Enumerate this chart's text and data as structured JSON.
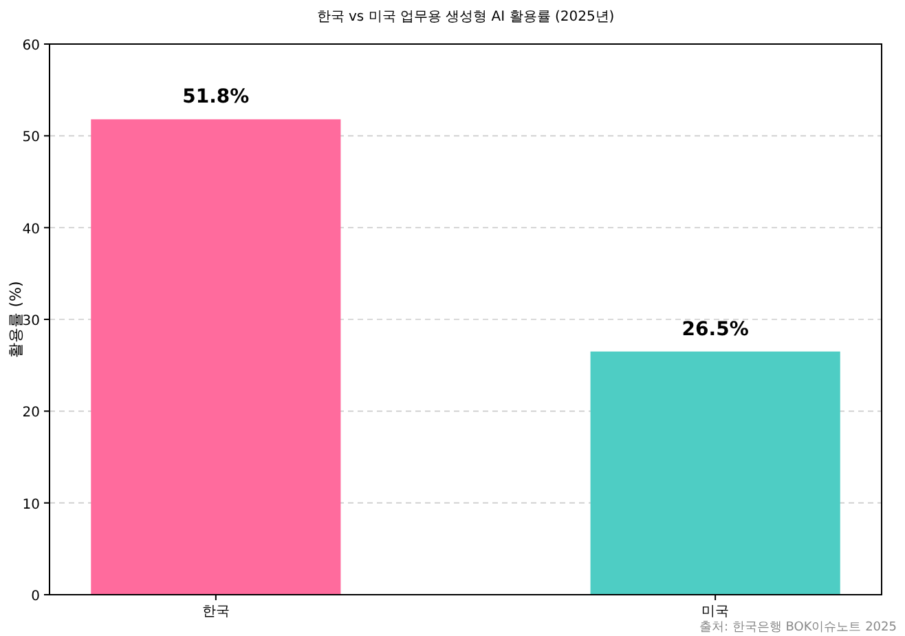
{
  "chart_data": {
    "type": "bar",
    "title": "한국 vs 미국 업무용 생성형 AI 활용률 (2025년)",
    "ylabel": "활용률 (%)",
    "categories": [
      "한국",
      "미국"
    ],
    "values": [
      51.8,
      26.5
    ],
    "colors": [
      "#ff6b9d",
      "#4ecdc4"
    ],
    "ylim": [
      0,
      60
    ],
    "yticks": [
      0,
      10,
      20,
      30,
      40,
      50,
      60
    ],
    "grid": "y",
    "data_labels": true,
    "value_labels": [
      "51.8%",
      "26.5%"
    ],
    "annotations": [
      "출처: 한국은행 BOK이슈노트 2025"
    ]
  }
}
